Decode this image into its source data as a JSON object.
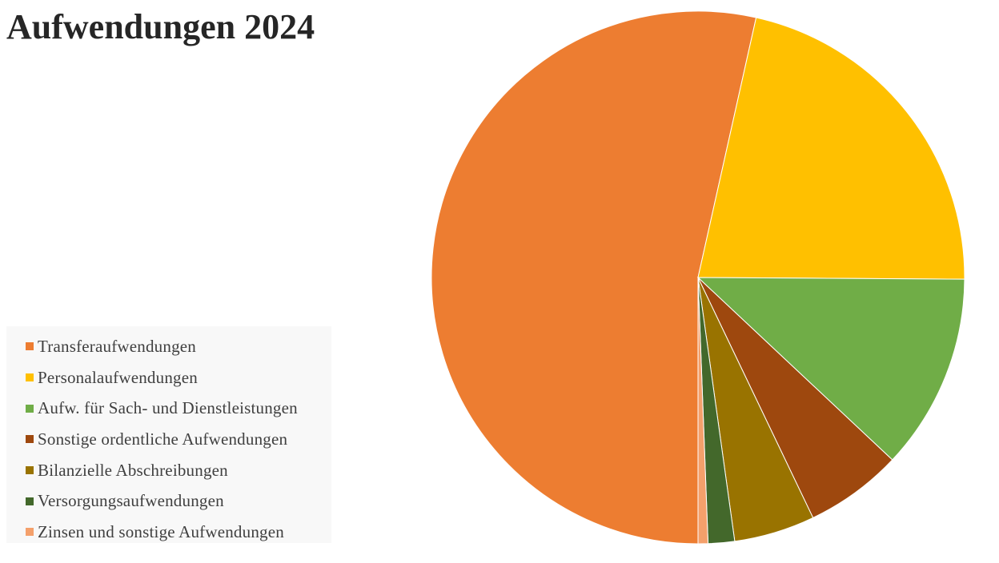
{
  "chart_data": {
    "type": "pie",
    "title": "Aufwendungen 2024",
    "legend_position": "left",
    "slices": [
      {
        "label": "Transferaufwendungen",
        "value": 53.5,
        "color": "#ED7D31"
      },
      {
        "label": "Personalaufwendungen",
        "value": 21.6,
        "color": "#FFC000"
      },
      {
        "label": "Aufw. für Sach- und Dienstleistungen",
        "value": 11.9,
        "color": "#70AD47"
      },
      {
        "label": "Sonstige ordentliche Aufwendungen",
        "value": 5.9,
        "color": "#9E480E"
      },
      {
        "label": "Bilanzielle Abschreibungen",
        "value": 4.9,
        "color": "#997300"
      },
      {
        "label": "Versorgungsaufwendungen",
        "value": 1.6,
        "color": "#43682B"
      },
      {
        "label": "Zinsen und sonstige Aufwendungen",
        "value": 0.6,
        "color": "#F4A06B"
      }
    ]
  }
}
